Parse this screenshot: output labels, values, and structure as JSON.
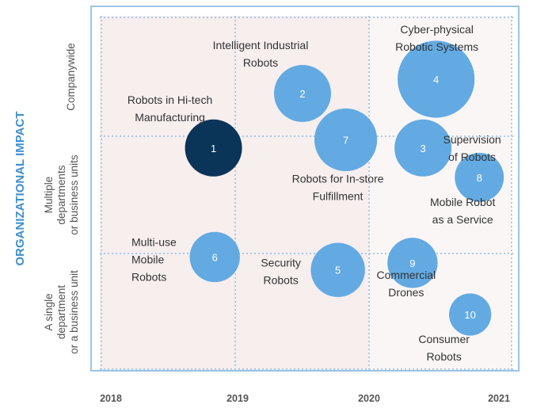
{
  "chart_data": {
    "type": "bubble",
    "ylabel": "ORGANIZATIONAL IMPACT",
    "y_bands": [
      "A single department or a business unit",
      "Multiple departments or business units",
      "Companywide"
    ],
    "y_band_lines": [
      [
        "A single",
        "department",
        "or a business unit"
      ],
      [
        "Multiple",
        "departments",
        "or business units"
      ],
      [
        "Companywide"
      ]
    ],
    "x_ticks": [
      "2018",
      "2019",
      "2020",
      "2021"
    ],
    "xlim": [
      2018,
      2021
    ],
    "ylim": [
      0,
      3
    ],
    "grid": true,
    "colors": {
      "bubble": "#5ba5e0",
      "highlight": "#0b3558",
      "grid": "#a8cbe8",
      "axis": "#9cc3e6",
      "band": "#f7eeee"
    },
    "points": [
      {
        "id": "1",
        "label": [
          "Robots in Hi-tech",
          "Manufacturing"
        ],
        "x": 2018.82,
        "y": 1.9,
        "size": 1.0,
        "highlight": true
      },
      {
        "id": "2",
        "label": [
          "Intelligent Industrial",
          "Robots"
        ],
        "x": 2019.5,
        "y": 2.36,
        "size": 1.0
      },
      {
        "id": "3",
        "label": [
          "Supervision",
          "of Robots"
        ],
        "x": 2020.42,
        "y": 1.9,
        "size": 1.0
      },
      {
        "id": "4",
        "label": [
          "Cyber-physical",
          "Robotic Systems"
        ],
        "x": 2020.52,
        "y": 2.48,
        "size": 1.35
      },
      {
        "id": "5",
        "label": [
          "Security",
          "Robots"
        ],
        "x": 2019.77,
        "y": 0.86,
        "size": 0.95
      },
      {
        "id": "6",
        "label": [
          "Multi-use",
          "Mobile",
          "Robots"
        ],
        "x": 2018.83,
        "y": 0.97,
        "size": 0.88
      },
      {
        "id": "7",
        "label": [
          "Robots for In-store",
          "Fulfillment"
        ],
        "x": 2019.83,
        "y": 1.97,
        "size": 1.1
      },
      {
        "id": "8",
        "label": [
          "Mobile Robot",
          "as a Service"
        ],
        "x": 2020.85,
        "y": 1.65,
        "size": 0.86
      },
      {
        "id": "9",
        "label": [
          "Commercial",
          "Drones"
        ],
        "x": 2020.34,
        "y": 0.92,
        "size": 0.88
      },
      {
        "id": "10",
        "label": [
          "Consumer",
          "Robots"
        ],
        "x": 2020.78,
        "y": 0.48,
        "size": 0.74
      }
    ]
  }
}
